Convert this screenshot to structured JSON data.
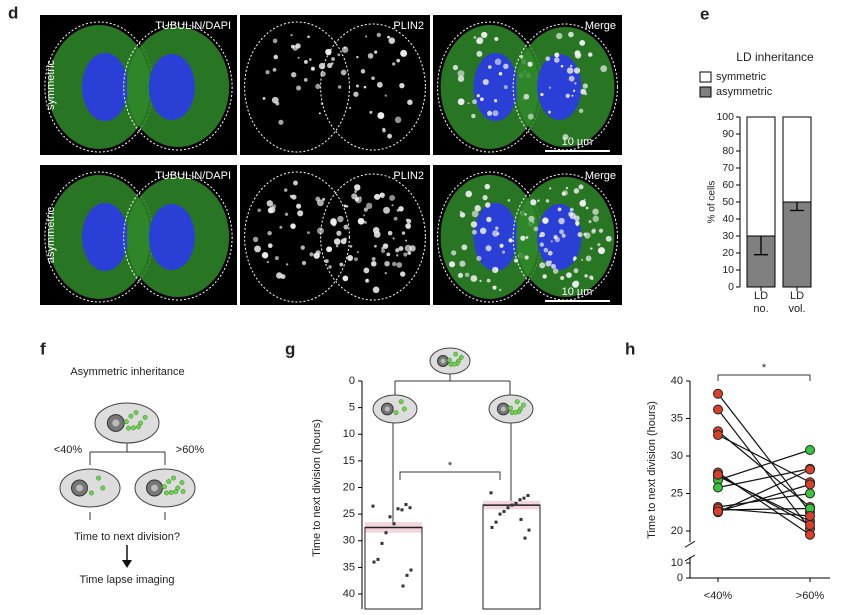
{
  "panel_d": {
    "label": "d",
    "channels": [
      "TUBULIN/DAPI",
      "PLIN2",
      "Merge"
    ],
    "rows": [
      "symmetric",
      "asymmetric"
    ],
    "scale_bar": "10 µm"
  },
  "panel_f": {
    "label": "f",
    "title": "Asymmetric inheritance",
    "left": "<40%",
    "right": ">60%",
    "question": "Time to next division?",
    "method": "Time lapse imaging"
  },
  "chart_data": [
    {
      "type": "stacked_bar",
      "label": "e",
      "title": "LD inheritance",
      "ylabel": "% of cells",
      "categories": [
        "LD no.",
        "LD vol."
      ],
      "series": [
        {
          "name": "asymmetric",
          "color": "#808080",
          "values": [
            30,
            50
          ],
          "errors": [
            11,
            5
          ]
        },
        {
          "name": "symmetric",
          "color": "#ffffff",
          "values": [
            70,
            50
          ]
        }
      ],
      "ylim": [
        0,
        100
      ],
      "yticks": [
        0,
        10,
        20,
        30,
        40,
        50,
        60,
        70,
        80,
        90,
        100
      ]
    },
    {
      "type": "bar_scatter",
      "label": "g",
      "ylabel": "Time to next division (hours)",
      "annotation": "*",
      "ylim": [
        0,
        40
      ],
      "yticks": [
        0,
        5,
        10,
        15,
        20,
        25,
        30,
        35,
        40
      ],
      "y_inverted": true,
      "means": [
        27.5,
        23.3
      ],
      "sem": [
        1.0,
        0.8
      ],
      "band_color": "#f2d6dc",
      "points": [
        [
          23.5,
          23.8,
          23.2,
          24.2,
          24.0,
          26.8,
          25.5,
          28.5,
          30.5,
          33.5,
          34.0,
          35.5,
          36.5,
          38.5
        ],
        [
          21.0,
          21.5,
          22.0,
          22.3,
          23.0,
          23.3,
          23.8,
          24.5,
          25.0,
          26.5,
          27.5,
          28.0,
          29.5,
          26.0
        ]
      ]
    },
    {
      "type": "paired",
      "label": "h",
      "ylabel": "Time to next division (hours)",
      "annotation": "*",
      "categories": [
        "<40%",
        ">60%"
      ],
      "ylim": [
        18.5,
        40
      ],
      "yticks": [
        20,
        25,
        30,
        35,
        40
      ],
      "break_ylim": [
        0,
        10
      ],
      "break_yticks": [
        0,
        10
      ],
      "pairs": [
        {
          "values": [
            38.3,
            22.5
          ],
          "colors": [
            "#d9402a",
            "#d9402a"
          ]
        },
        {
          "values": [
            36.2,
            20.3
          ],
          "colors": [
            "#d9402a",
            "#d9402a"
          ]
        },
        {
          "values": [
            33.3,
            23.2
          ],
          "colors": [
            "#d9402a",
            "#d9402a"
          ]
        },
        {
          "values": [
            32.8,
            26.5
          ],
          "colors": [
            "#d9402a",
            "#d9402a"
          ]
        },
        {
          "values": [
            27.8,
            19.5
          ],
          "colors": [
            "#d9402a",
            "#d9402a"
          ]
        },
        {
          "values": [
            27.3,
            21.3
          ],
          "colors": [
            "#d9402a",
            "#d9402a"
          ]
        },
        {
          "values": [
            26.8,
            30.8
          ],
          "colors": [
            "#3cc33c",
            "#3cc33c"
          ]
        },
        {
          "values": [
            25.8,
            28.3
          ],
          "colors": [
            "#3cc33c",
            "#3cc33c"
          ]
        },
        {
          "values": [
            27.5,
            20.8
          ],
          "colors": [
            "#d9402a",
            "#d9402a"
          ]
        },
        {
          "values": [
            23.2,
            25.0
          ],
          "colors": [
            "#d9402a",
            "#3cc33c"
          ]
        },
        {
          "values": [
            22.8,
            23.0
          ],
          "colors": [
            "#3cc33c",
            "#3cc33c"
          ]
        },
        {
          "values": [
            22.5,
            28.2
          ],
          "colors": [
            "#d9402a",
            "#d9402a"
          ]
        },
        {
          "values": [
            23.0,
            22.0
          ],
          "colors": [
            "#d9402a",
            "#d9402a"
          ]
        },
        {
          "values": [
            22.6,
            26.2
          ],
          "colors": [
            "#d9402a",
            "#d9402a"
          ]
        }
      ]
    }
  ]
}
